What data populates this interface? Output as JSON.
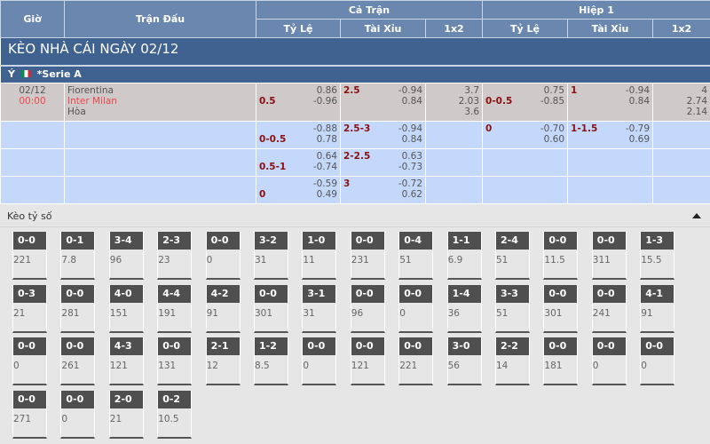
{
  "header": {
    "time": "Giờ",
    "match": "Trận Đấu",
    "full": "Cả Trận",
    "half": "Hiệp 1",
    "hdp": "Tỷ Lệ",
    "ou": "Tài Xỉu",
    "x12": "1x2"
  },
  "title": "KÈO NHÀ CÁI NGÀY 02/12",
  "league": {
    "country": "Ý",
    "name": "*Serie A",
    "flag_colors": [
      "#009246",
      "#ffffff",
      "#ce2b37"
    ]
  },
  "match": {
    "date": "02/12",
    "time": "00:00",
    "home": "Fiorentina",
    "away": "Inter Milan",
    "draw": "Hòa"
  },
  "rows": [
    {
      "ft_hdp": {
        "h": "",
        "a": "0.5",
        "odds": [
          "0.86",
          "-0.96"
        ]
      },
      "ft_ou": {
        "line": "2.5",
        "odds": [
          "-0.94",
          "0.84"
        ]
      },
      "ft_1x2": [
        "3.7",
        "2.03",
        "3.6"
      ],
      "h1_hdp": {
        "h": "",
        "a": "0-0.5",
        "odds": [
          "0.75",
          "-0.85"
        ]
      },
      "h1_ou": {
        "line": "1",
        "odds": [
          "-0.94",
          "0.84"
        ]
      },
      "h1_1x2": [
        "4",
        "2.74",
        "2.14"
      ]
    },
    {
      "ft_hdp": {
        "h": "",
        "a": "0-0.5",
        "odds": [
          "-0.88",
          "0.78"
        ]
      },
      "ft_ou": {
        "line": "2.5-3",
        "odds": [
          "-0.94",
          "0.84"
        ]
      },
      "ft_1x2": [],
      "h1_hdp": {
        "h": "0",
        "a": "",
        "odds": [
          "-0.70",
          "0.60"
        ]
      },
      "h1_ou": {
        "line": "1-1.5",
        "odds": [
          "-0.79",
          "0.69"
        ]
      },
      "h1_1x2": []
    },
    {
      "ft_hdp": {
        "h": "",
        "a": "0.5-1",
        "odds": [
          "0.64",
          "-0.74"
        ]
      },
      "ft_ou": {
        "line": "2-2.5",
        "odds": [
          "0.63",
          "-0.73"
        ]
      },
      "ft_1x2": [],
      "h1_hdp": null,
      "h1_ou": null,
      "h1_1x2": []
    },
    {
      "ft_hdp": {
        "h": "",
        "a": "0",
        "odds": [
          "-0.59",
          "0.49"
        ]
      },
      "ft_ou": {
        "line": "3",
        "odds": [
          "-0.72",
          "0.62"
        ]
      },
      "ft_1x2": [],
      "h1_hdp": null,
      "h1_ou": null,
      "h1_1x2": []
    }
  ],
  "correct_score": {
    "title": "Kèo tỷ số",
    "items": [
      [
        "0-0",
        "221"
      ],
      [
        "0-1",
        "7.8"
      ],
      [
        "3-4",
        "96"
      ],
      [
        "2-3",
        "23"
      ],
      [
        "0-0",
        "0"
      ],
      [
        "3-2",
        "31"
      ],
      [
        "1-0",
        "11"
      ],
      [
        "0-0",
        "231"
      ],
      [
        "0-4",
        "51"
      ],
      [
        "1-1",
        "6.9"
      ],
      [
        "2-4",
        "51"
      ],
      [
        "0-0",
        "11.5"
      ],
      [
        "0-0",
        "311"
      ],
      [
        "1-3",
        "15.5"
      ],
      [
        "0-3",
        "21"
      ],
      [
        "0-0",
        "281"
      ],
      [
        "4-0",
        "151"
      ],
      [
        "4-4",
        "191"
      ],
      [
        "4-2",
        "91"
      ],
      [
        "0-0",
        "301"
      ],
      [
        "3-1",
        "31"
      ],
      [
        "0-0",
        "96"
      ],
      [
        "0-0",
        "0"
      ],
      [
        "1-4",
        "36"
      ],
      [
        "3-3",
        "51"
      ],
      [
        "0-0",
        "301"
      ],
      [
        "0-0",
        "241"
      ],
      [
        "4-1",
        "91"
      ],
      [
        "0-0",
        "0"
      ],
      [
        "0-0",
        "261"
      ],
      [
        "4-3",
        "121"
      ],
      [
        "0-0",
        "131"
      ],
      [
        "2-1",
        "12"
      ],
      [
        "1-2",
        "8.5"
      ],
      [
        "0-0",
        "0"
      ],
      [
        "0-0",
        "121"
      ],
      [
        "0-0",
        "221"
      ],
      [
        "3-0",
        "56"
      ],
      [
        "2-2",
        "14"
      ],
      [
        "0-0",
        "181"
      ],
      [
        "0-0",
        "0"
      ],
      [
        "0-0",
        "0"
      ],
      [
        "0-0",
        "271"
      ],
      [
        "0-0",
        "0"
      ],
      [
        "2-0",
        "21"
      ],
      [
        "0-2",
        "10.5"
      ]
    ]
  }
}
